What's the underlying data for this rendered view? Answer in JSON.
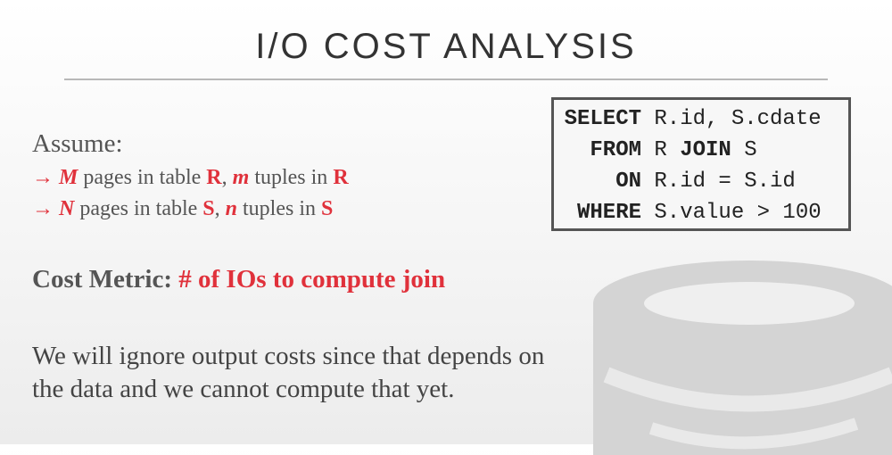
{
  "title": "I/O COST ANALYSIS",
  "assume": {
    "heading": "Assume:",
    "bullets": [
      {
        "arrow": "→",
        "var": "M",
        "mid": "pages in table",
        "table": "R",
        "comma": ",",
        "var2": "m",
        "tail": "tuples in",
        "table2": "R"
      },
      {
        "arrow": "→",
        "var": "N",
        "mid": "pages in table",
        "table": "S",
        "comma": ",",
        "var2": "n",
        "tail": "tuples in",
        "table2": "S"
      }
    ]
  },
  "sql": {
    "rows": [
      {
        "kw": "SELECT",
        "rest": "R.id, S.cdate"
      },
      {
        "kw": "FROM",
        "rest_a": "R",
        "kw2": "JOIN",
        "rest_b": "S"
      },
      {
        "kw": "ON",
        "rest": "R.id = S.id"
      },
      {
        "kw": "WHERE",
        "rest": "S.value > 100"
      }
    ]
  },
  "metric": {
    "label": "Cost Metric:",
    "value": "# of IOs to compute join"
  },
  "note": {
    "line1": "We will ignore output costs since that depends on",
    "line2": "the data and we cannot compute that yet."
  },
  "colors": {
    "accent": "#e0313b",
    "text": "#444444",
    "logo": "#d4d4d4"
  },
  "icons": {
    "logo": "database-cylinder-logo"
  }
}
